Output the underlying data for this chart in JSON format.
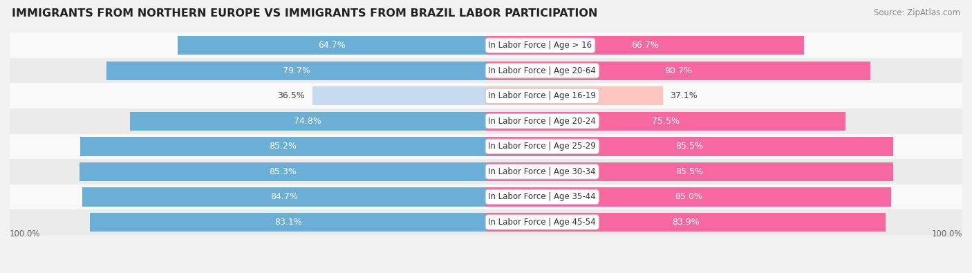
{
  "title": "IMMIGRANTS FROM NORTHERN EUROPE VS IMMIGRANTS FROM BRAZIL LABOR PARTICIPATION",
  "source": "Source: ZipAtlas.com",
  "categories": [
    "In Labor Force | Age > 16",
    "In Labor Force | Age 20-64",
    "In Labor Force | Age 16-19",
    "In Labor Force | Age 20-24",
    "In Labor Force | Age 25-29",
    "In Labor Force | Age 30-34",
    "In Labor Force | Age 35-44",
    "In Labor Force | Age 45-54"
  ],
  "northern_europe": [
    64.7,
    79.7,
    36.5,
    74.8,
    85.2,
    85.3,
    84.7,
    83.1
  ],
  "brazil": [
    66.7,
    80.7,
    37.1,
    75.5,
    85.5,
    85.5,
    85.0,
    83.9
  ],
  "blue_color": "#6baed6",
  "blue_light_color": "#c6dbef",
  "pink_color": "#f768a1",
  "pink_light_color": "#fcc5c0",
  "bar_height": 0.75,
  "bg_color": "#f2f2f2",
  "row_bg_light": "#f9f9f9",
  "row_bg_dark": "#ebebeb",
  "label_fontsize": 9,
  "title_fontsize": 11.5,
  "source_fontsize": 8.5,
  "legend_fontsize": 9.5,
  "cat_label_fontsize": 8.5
}
